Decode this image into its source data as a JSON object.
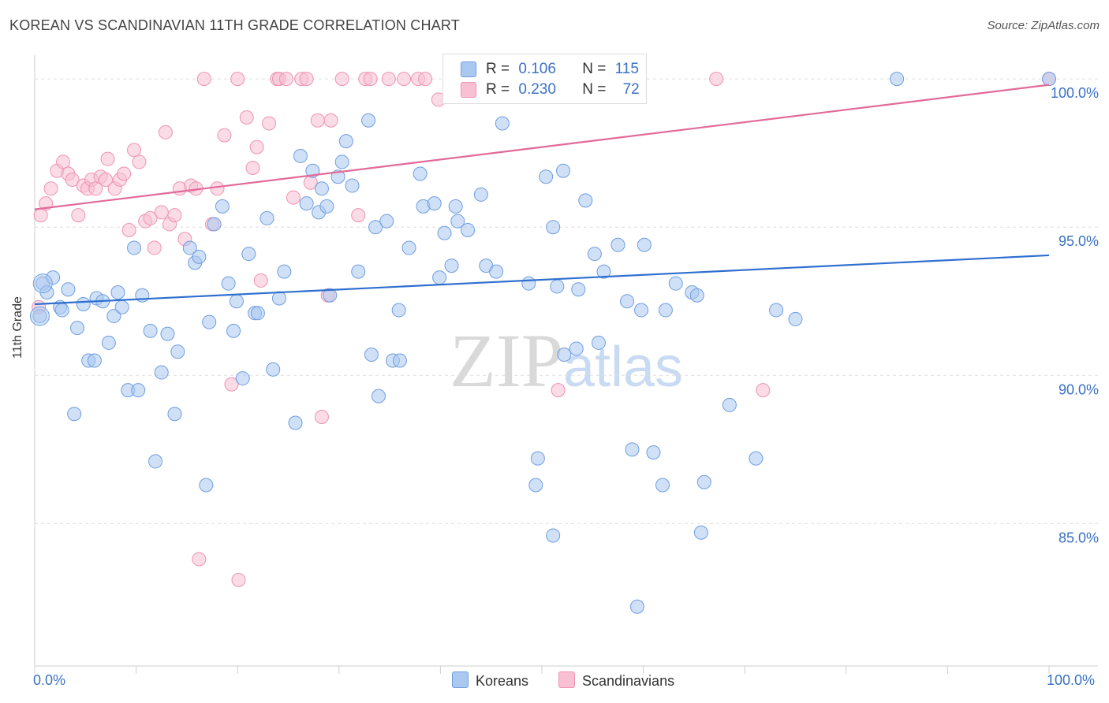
{
  "title": "KOREAN VS SCANDINAVIAN 11TH GRADE CORRELATION CHART",
  "source": "Source: ZipAtlas.com",
  "watermark": "ZIPatlas",
  "colors": {
    "koreans_fill": "#aac8f0",
    "koreans_stroke": "#6f9ee0",
    "koreans_line": "#2f6fcf",
    "scand_fill": "#f8c0d2",
    "scand_stroke": "#ee93b2",
    "scand_line": "#e2699a",
    "axis_text": "#3a72c4"
  },
  "legend_top": {
    "koreans": {
      "r_label": "R =",
      "r_value": "0.106",
      "n_label": "N =",
      "n_value": "115"
    },
    "scandinavians": {
      "r_label": "R =",
      "r_value": "0.230",
      "n_label": "N =",
      "n_value": "72"
    }
  },
  "legend_bottom": {
    "koreans": "Koreans",
    "scandinavians": "Scandinavians"
  },
  "chart_data": {
    "type": "scatter",
    "title": "KOREAN VS SCANDINAVIAN 11TH GRADE CORRELATION CHART",
    "xlabel": "",
    "ylabel": "11th Grade",
    "x_tick_labels": [
      "0.0%",
      "100.0%"
    ],
    "y_tick_labels": [
      "100.0%",
      "95.0%",
      "90.0%",
      "85.0%"
    ],
    "y_ticks": [
      100,
      95,
      90,
      85
    ],
    "xlim": [
      0,
      100
    ],
    "ylim": [
      80.2,
      100.8
    ],
    "grid": true,
    "legend_placement": "top-center",
    "series": [
      {
        "name": "Koreans",
        "R": 0.106,
        "N": 115,
        "trend": [
          [
            0,
            92.4
          ],
          [
            100,
            94.05
          ]
        ],
        "points": [
          [
            0.5,
            92
          ],
          [
            0.8,
            93.1
          ],
          [
            1.2,
            92.8
          ],
          [
            1.8,
            93.3
          ],
          [
            2.5,
            92.3
          ],
          [
            2.7,
            92.2
          ],
          [
            3.3,
            92.9
          ],
          [
            3.9,
            88.7
          ],
          [
            4.2,
            91.6
          ],
          [
            4.8,
            92.4
          ],
          [
            5.3,
            90.5
          ],
          [
            5.9,
            90.5
          ],
          [
            6.1,
            92.6
          ],
          [
            6.7,
            92.5
          ],
          [
            7.3,
            91.1
          ],
          [
            7.8,
            92
          ],
          [
            8.2,
            92.8
          ],
          [
            8.6,
            92.3
          ],
          [
            9.2,
            89.5
          ],
          [
            9.8,
            94.3
          ],
          [
            10.2,
            89.5
          ],
          [
            10.6,
            92.7
          ],
          [
            11.4,
            91.5
          ],
          [
            11.9,
            87.1
          ],
          [
            12.5,
            90.1
          ],
          [
            13.1,
            91.4
          ],
          [
            14.1,
            90.8
          ],
          [
            13.8,
            88.7
          ],
          [
            15.3,
            94.3
          ],
          [
            15.8,
            93.8
          ],
          [
            16.2,
            94
          ],
          [
            16.9,
            86.3
          ],
          [
            17.2,
            91.8
          ],
          [
            17.7,
            95.1
          ],
          [
            18.5,
            95.7
          ],
          [
            19.1,
            93.1
          ],
          [
            19.6,
            91.5
          ],
          [
            19.9,
            92.5
          ],
          [
            20.5,
            89.9
          ],
          [
            21.1,
            94.1
          ],
          [
            21.7,
            92.1
          ],
          [
            22.0,
            92.1
          ],
          [
            22.9,
            95.3
          ],
          [
            23.5,
            90.2
          ],
          [
            24.1,
            92.6
          ],
          [
            24.6,
            93.5
          ],
          [
            25.7,
            88.4
          ],
          [
            26.2,
            97.4
          ],
          [
            26.8,
            95.8
          ],
          [
            27.4,
            96.9
          ],
          [
            28.0,
            95.5
          ],
          [
            28.3,
            96.3
          ],
          [
            28.8,
            95.7
          ],
          [
            29.1,
            92.7
          ],
          [
            29.9,
            96.7
          ],
          [
            30.3,
            97.2
          ],
          [
            30.7,
            97.9
          ],
          [
            31.3,
            96.4
          ],
          [
            31.9,
            93.5
          ],
          [
            32.9,
            98.6
          ],
          [
            33.2,
            90.7
          ],
          [
            33.6,
            95
          ],
          [
            33.9,
            89.3
          ],
          [
            34.7,
            95.2
          ],
          [
            35.3,
            90.5
          ],
          [
            36.0,
            90.5
          ],
          [
            35.9,
            92.2
          ],
          [
            36.9,
            94.3
          ],
          [
            38.0,
            96.8
          ],
          [
            38.3,
            95.7
          ],
          [
            39.4,
            95.8
          ],
          [
            39.9,
            93.3
          ],
          [
            40.4,
            94.8
          ],
          [
            41.1,
            93.7
          ],
          [
            41.5,
            95.7
          ],
          [
            41.7,
            95.2
          ],
          [
            41.9,
            100
          ],
          [
            42.7,
            94.9
          ],
          [
            44.0,
            96.1
          ],
          [
            44.5,
            93.7
          ],
          [
            45.5,
            93.5
          ],
          [
            46.1,
            98.5
          ],
          [
            48.7,
            93.1
          ],
          [
            49.4,
            86.3
          ],
          [
            49.6,
            87.2
          ],
          [
            50.4,
            96.7
          ],
          [
            51.1,
            84.6
          ],
          [
            51.1,
            95
          ],
          [
            51.5,
            93
          ],
          [
            52.1,
            96.9
          ],
          [
            52.2,
            90.7
          ],
          [
            53.4,
            90.9
          ],
          [
            53.6,
            92.9
          ],
          [
            54.3,
            95.9
          ],
          [
            55.2,
            94.1
          ],
          [
            55.6,
            91.1
          ],
          [
            56.1,
            93.5
          ],
          [
            57.5,
            94.4
          ],
          [
            58.4,
            92.5
          ],
          [
            58.9,
            87.5
          ],
          [
            59.4,
            82.2
          ],
          [
            59.8,
            92.2
          ],
          [
            60.1,
            94.4
          ],
          [
            61.0,
            87.4
          ],
          [
            61.9,
            86.3
          ],
          [
            62.2,
            92.2
          ],
          [
            63.2,
            93.1
          ],
          [
            64.8,
            92.8
          ],
          [
            65.3,
            92.7
          ],
          [
            65.7,
            84.7
          ],
          [
            66.0,
            86.4
          ],
          [
            68.5,
            89
          ],
          [
            71.1,
            87.2
          ],
          [
            73.1,
            92.2
          ],
          [
            75.0,
            91.9
          ],
          [
            85.0,
            100
          ],
          [
            100,
            100
          ]
        ]
      },
      {
        "name": "Scandinavians",
        "R": 0.23,
        "N": 72,
        "trend": [
          [
            0,
            95.6
          ],
          [
            100,
            99.8
          ]
        ],
        "points": [
          [
            0.4,
            92.3
          ],
          [
            0.6,
            95.4
          ],
          [
            1.1,
            95.8
          ],
          [
            1.6,
            96.3
          ],
          [
            2.2,
            96.9
          ],
          [
            2.8,
            97.2
          ],
          [
            3.3,
            96.8
          ],
          [
            3.7,
            96.6
          ],
          [
            4.3,
            95.4
          ],
          [
            4.8,
            96.4
          ],
          [
            5.2,
            96.3
          ],
          [
            5.6,
            96.6
          ],
          [
            6.0,
            96.3
          ],
          [
            6.5,
            96.7
          ],
          [
            7.0,
            96.6
          ],
          [
            7.2,
            97.3
          ],
          [
            7.9,
            96.3
          ],
          [
            8.4,
            96.6
          ],
          [
            8.8,
            96.8
          ],
          [
            9.3,
            94.9
          ],
          [
            9.8,
            97.6
          ],
          [
            10.3,
            97.2
          ],
          [
            10.9,
            95.2
          ],
          [
            11.4,
            95.3
          ],
          [
            11.8,
            94.3
          ],
          [
            12.5,
            95.5
          ],
          [
            12.9,
            98.2
          ],
          [
            13.3,
            95.1
          ],
          [
            13.8,
            95.4
          ],
          [
            14.3,
            96.3
          ],
          [
            14.8,
            94.6
          ],
          [
            15.4,
            96.4
          ],
          [
            15.9,
            96.3
          ],
          [
            16.2,
            83.8
          ],
          [
            16.7,
            100
          ],
          [
            17.5,
            95.1
          ],
          [
            18.0,
            96.3
          ],
          [
            18.7,
            98.1
          ],
          [
            19.4,
            89.7
          ],
          [
            20.0,
            100
          ],
          [
            20.1,
            83.1
          ],
          [
            20.9,
            98.7
          ],
          [
            21.5,
            97
          ],
          [
            21.9,
            97.7
          ],
          [
            22.3,
            93.2
          ],
          [
            23.1,
            98.5
          ],
          [
            23.9,
            100
          ],
          [
            24.1,
            100
          ],
          [
            24.8,
            100
          ],
          [
            25.5,
            96
          ],
          [
            26.3,
            100
          ],
          [
            26.8,
            100
          ],
          [
            27.2,
            96.5
          ],
          [
            27.9,
            98.6
          ],
          [
            28.3,
            88.6
          ],
          [
            28.9,
            92.7
          ],
          [
            29.2,
            98.6
          ],
          [
            30.3,
            100
          ],
          [
            31.9,
            95.4
          ],
          [
            32.6,
            100
          ],
          [
            33.1,
            100
          ],
          [
            34.9,
            100
          ],
          [
            36.4,
            100
          ],
          [
            37.8,
            100
          ],
          [
            38.5,
            100
          ],
          [
            39.8,
            99.3
          ],
          [
            42.0,
            100
          ],
          [
            47.0,
            100
          ],
          [
            51.6,
            89.5
          ],
          [
            67.2,
            100
          ],
          [
            71.8,
            89.5
          ],
          [
            100,
            100
          ]
        ]
      }
    ]
  }
}
